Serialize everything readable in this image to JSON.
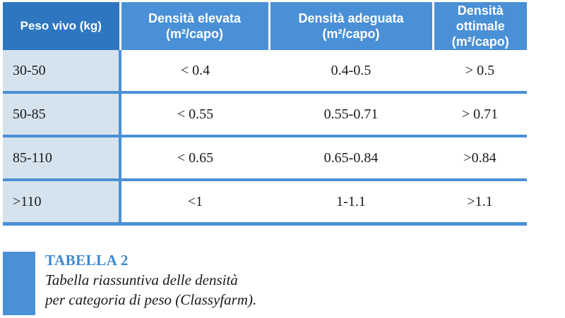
{
  "table": {
    "headers": [
      "Peso vivo (kg)",
      [
        "Densità elevata",
        "(m²/capo)"
      ],
      [
        "Densità adeguata",
        "(m²/capo)"
      ],
      [
        "Densità ottimale",
        "(m²/capo)"
      ]
    ],
    "rows": [
      [
        "30-50",
        "< 0.4",
        "0.4-0.5",
        "> 0.5"
      ],
      [
        "50-85",
        "< 0.55",
        "0.55-0.71",
        "> 0.71"
      ],
      [
        "85-110",
        "< 0.65",
        "0.65-0.84",
        ">0.84"
      ],
      [
        ">110",
        "<1",
        "1-1.1",
        ">1.1"
      ]
    ]
  },
  "caption": {
    "title": "TABELLA 2",
    "line1": "Tabella riassuntiva delle densità",
    "line2": "per categoria di peso (Classyfarm)."
  },
  "colors": {
    "header_blue": "#4a90d6",
    "header_dark_blue": "#2f76c0",
    "first_col_bg": "#d5e3ee",
    "caption_title": "#3f88cf"
  }
}
